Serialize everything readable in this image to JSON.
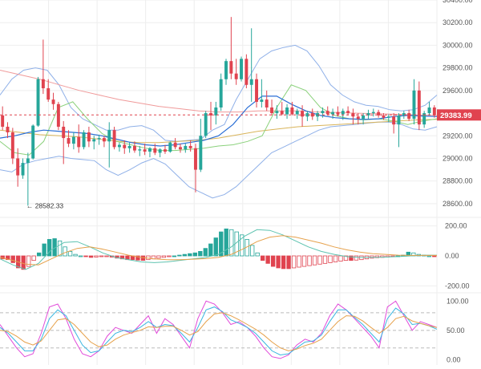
{
  "colors": {
    "up": "#26a69a",
    "down": "#e0434f",
    "bollinger": "#8fb0e8",
    "ema_long": "#f09a9a",
    "ema_short": "#8bd17c",
    "ma_mid": "#2b6fd6",
    "ma_slow": "#d9b45a",
    "macd_line": "#5ec3b0",
    "signal_line": "#e6a14b",
    "stoch_k": "#e14ad9",
    "stoch_d": "#39b6e0",
    "stoch_slow": "#e6a14b",
    "last_price_bg": "#e0434f"
  },
  "chart_data": [
    {
      "type": "candlestick",
      "panel": "price",
      "y_ticks": [
        "30400.00",
        "30200.00",
        "30000.00",
        "29800.00",
        "29600.00",
        "29383.99",
        "29200.00",
        "29000.00",
        "28800.00",
        "28600.00"
      ],
      "ylim": [
        28500,
        30400
      ],
      "last_price": 29383.99,
      "last_price_label": "29383.99",
      "annotation": {
        "label": "← 28582.33",
        "value": 28582.33,
        "candle_index": 5
      },
      "candles": [
        [
          29380,
          29460,
          29250,
          29280
        ],
        [
          29280,
          29320,
          29180,
          29230
        ],
        [
          29230,
          29270,
          28950,
          29000
        ],
        [
          29000,
          29090,
          28750,
          28850
        ],
        [
          28850,
          29000,
          28820,
          28960
        ],
        [
          28960,
          29050,
          28582,
          29000
        ],
        [
          29000,
          29300,
          28990,
          29290
        ],
        [
          29290,
          29720,
          29280,
          29700
        ],
        [
          29700,
          30050,
          29570,
          29620
        ],
        [
          29620,
          29700,
          29500,
          29520
        ],
        [
          29520,
          29580,
          29430,
          29480
        ],
        [
          29480,
          29500,
          29250,
          29280
        ],
        [
          29280,
          29330,
          28950,
          29180
        ],
        [
          29180,
          29250,
          29100,
          29130
        ],
        [
          29130,
          29230,
          29080,
          29190
        ],
        [
          29190,
          29300,
          29050,
          29100
        ],
        [
          29100,
          29250,
          29080,
          29230
        ],
        [
          29230,
          29280,
          29100,
          29150
        ],
        [
          29150,
          29200,
          29080,
          29170
        ],
        [
          29170,
          29210,
          29120,
          29180
        ],
        [
          29180,
          29200,
          29100,
          29150
        ],
        [
          29150,
          29320,
          28920,
          29250
        ],
        [
          29250,
          29280,
          29080,
          29100
        ],
        [
          29100,
          29140,
          29060,
          29120
        ],
        [
          29120,
          29160,
          29040,
          29090
        ],
        [
          29090,
          29140,
          29050,
          29110
        ],
        [
          29110,
          29150,
          29050,
          29070
        ],
        [
          29070,
          29110,
          29020,
          29080
        ],
        [
          29080,
          29130,
          29030,
          29060
        ],
        [
          29060,
          29100,
          29010,
          29090
        ],
        [
          29090,
          29130,
          29030,
          29050
        ],
        [
          29050,
          29090,
          29010,
          29080
        ],
        [
          29080,
          29120,
          29040,
          29060
        ],
        [
          29060,
          29150,
          29050,
          29140
        ],
        [
          29140,
          29180,
          29080,
          29100
        ],
        [
          29100,
          29130,
          29050,
          29080
        ],
        [
          29080,
          29130,
          29050,
          29110
        ],
        [
          29110,
          29160,
          29060,
          29090
        ],
        [
          29090,
          29130,
          28700,
          28900
        ],
        [
          28900,
          29350,
          28880,
          29200
        ],
        [
          29200,
          29420,
          29180,
          29400
        ],
        [
          29400,
          29500,
          29250,
          29380
        ],
        [
          29380,
          29500,
          29300,
          29450
        ],
        [
          29450,
          29750,
          29420,
          29700
        ],
        [
          29700,
          29880,
          29650,
          29860
        ],
        [
          29860,
          30250,
          29700,
          29750
        ],
        [
          29750,
          29880,
          29650,
          29700
        ],
        [
          29700,
          29900,
          29680,
          29880
        ],
        [
          29880,
          29920,
          29620,
          29650
        ],
        [
          29650,
          30150,
          29500,
          29700
        ],
        [
          29700,
          29750,
          29450,
          29500
        ],
        [
          29500,
          29700,
          29450,
          29520
        ],
        [
          29520,
          29600,
          29420,
          29450
        ],
        [
          29450,
          29520,
          29380,
          29400
        ],
        [
          29400,
          29470,
          29350,
          29420
        ],
        [
          29420,
          29500,
          29380,
          29390
        ],
        [
          29390,
          29480,
          29350,
          29450
        ],
        [
          29450,
          29500,
          29380,
          29390
        ],
        [
          29390,
          29440,
          29350,
          29420
        ],
        [
          29420,
          29470,
          29280,
          29370
        ],
        [
          29370,
          29420,
          29330,
          29400
        ],
        [
          29400,
          29440,
          29340,
          29370
        ],
        [
          29370,
          29420,
          29330,
          29400
        ],
        [
          29400,
          29450,
          29360,
          29420
        ],
        [
          29420,
          29460,
          29380,
          29390
        ],
        [
          29390,
          29440,
          29350,
          29410
        ],
        [
          29410,
          29460,
          29370,
          29390
        ],
        [
          29390,
          29440,
          29340,
          29420
        ],
        [
          29420,
          29460,
          29380,
          29400
        ],
        [
          29400,
          29440,
          29300,
          29370
        ],
        [
          29370,
          29400,
          29300,
          29350
        ],
        [
          29350,
          29400,
          29300,
          29380
        ],
        [
          29380,
          29430,
          29350,
          29400
        ],
        [
          29400,
          29440,
          29370,
          29410
        ],
        [
          29410,
          29430,
          29360,
          29380
        ],
        [
          29380,
          29400,
          29340,
          29360
        ],
        [
          29360,
          29390,
          29320,
          29370
        ],
        [
          29370,
          29400,
          29220,
          29300
        ],
        [
          29300,
          29400,
          29100,
          29380
        ],
        [
          29380,
          29420,
          29350,
          29400
        ],
        [
          29400,
          29430,
          29330,
          29350
        ],
        [
          29350,
          29700,
          29300,
          29600
        ],
        [
          29600,
          29680,
          29250,
          29300
        ],
        [
          29300,
          29420,
          29270,
          29400
        ],
        [
          29400,
          29500,
          29380,
          29450
        ],
        [
          29450,
          29470,
          29360,
          29384
        ]
      ],
      "bollinger_upper": [
        29560,
        29700,
        29780,
        29800,
        29780,
        29650,
        29450,
        29350,
        29300,
        29250,
        29250,
        29280,
        29290,
        29250,
        29160,
        29150,
        29160,
        29170,
        29250,
        29300,
        29520,
        29700,
        29880,
        29950,
        29980,
        30000,
        29950,
        29820,
        29650,
        29560,
        29500,
        29470,
        29460,
        29430,
        29420,
        29430,
        29470,
        29560
      ],
      "bollinger_lower": [
        28900,
        28880,
        28950,
        28980,
        29000,
        29020,
        29000,
        28990,
        28980,
        28900,
        28850,
        28900,
        28960,
        29000,
        28950,
        28850,
        28750,
        28700,
        28650,
        28680,
        28750,
        28850,
        28950,
        29050,
        29100,
        29150,
        29200,
        29250,
        29280,
        29290,
        29300,
        29310,
        29320,
        29320,
        29300,
        29260,
        29250,
        29280
      ],
      "ema_long": [
        29780,
        29740,
        29700,
        29650,
        29600,
        29560,
        29520,
        29490,
        29460,
        29440,
        29420,
        29410,
        29410,
        29420,
        29420,
        29420,
        29410,
        29405,
        29400,
        29395,
        29390,
        29385,
        29380
      ],
      "ema_short": [
        29150,
        29050,
        29030,
        29150,
        29450,
        29500,
        29350,
        29220,
        29150,
        29120,
        29090,
        29070,
        29070,
        29080,
        29090,
        29110,
        29120,
        29150,
        29200,
        29450,
        29650,
        29600,
        29450,
        29380,
        29350,
        29340,
        29350,
        29330,
        29300,
        29330,
        29350
      ],
      "ma_mid": [
        29180,
        29200,
        29230,
        29250,
        29240,
        29230,
        29220,
        29200,
        29170,
        29140,
        29120,
        29110,
        29120,
        29140,
        29160,
        29200,
        29300,
        29450,
        29550,
        29550,
        29480,
        29420,
        29380,
        29360,
        29350,
        29345,
        29350,
        29370,
        29380,
        29375,
        29370
      ],
      "ma_slow": [
        29250,
        29230,
        29210,
        29200,
        29190,
        29170,
        29150,
        29140,
        29140,
        29150,
        29160,
        29180,
        29210,
        29240,
        29260,
        29280,
        29290,
        29300,
        29310,
        29320,
        29330,
        29340,
        29345
      ]
    },
    {
      "type": "bar",
      "panel": "macd",
      "y_ticks": [
        "200.00",
        "0.00",
        "-200.00"
      ],
      "ylim": [
        -230,
        230
      ],
      "histogram": [
        -20,
        -25,
        -45,
        -80,
        -90,
        -70,
        -30,
        20,
        80,
        110,
        115,
        100,
        60,
        30,
        10,
        0,
        -5,
        -10,
        -8,
        -5,
        -3,
        -8,
        -15,
        -20,
        -25,
        -25,
        -28,
        -30,
        -25,
        -20,
        -15,
        -10,
        -5,
        0,
        5,
        10,
        15,
        20,
        30,
        50,
        80,
        120,
        160,
        180,
        175,
        160,
        140,
        110,
        70,
        20,
        -30,
        -50,
        -70,
        -80,
        -85,
        -85,
        -80,
        -75,
        -70,
        -65,
        -60,
        -55,
        -50,
        -45,
        -40,
        -35,
        -30,
        -30,
        -28,
        -25,
        -20,
        -15,
        -12,
        -10,
        -8,
        -5,
        0,
        5,
        25,
        20,
        10,
        5,
        0,
        -5
      ],
      "macd_line": [
        -20,
        -60,
        -90,
        -50,
        40,
        90,
        95,
        60,
        20,
        -10,
        -25,
        -40,
        -45,
        -40,
        -30,
        -20,
        -10,
        10,
        60,
        130,
        175,
        170,
        140,
        100,
        60,
        30,
        10,
        -5,
        -10,
        -10,
        -8,
        -5,
        0,
        5,
        5
      ],
      "signal_line": [
        -10,
        -30,
        -55,
        -60,
        -20,
        20,
        50,
        60,
        45,
        25,
        5,
        -10,
        -20,
        -25,
        -25,
        -22,
        -18,
        -10,
        10,
        50,
        95,
        125,
        135,
        125,
        105,
        85,
        60,
        40,
        25,
        15,
        10,
        5,
        3,
        3,
        3
      ]
    },
    {
      "type": "line",
      "panel": "stochastic",
      "y_ticks": [
        "100.00",
        "50.00",
        "0.00"
      ],
      "ylim": [
        -5,
        110
      ],
      "reference_levels": [
        80,
        50,
        20
      ],
      "series": [
        {
          "values": [
            60,
            40,
            20,
            5,
            10,
            45,
            90,
            95,
            70,
            35,
            10,
            5,
            15,
            40,
            55,
            50,
            45,
            60,
            75,
            45,
            70,
            60,
            40,
            20,
            70,
            100,
            95,
            80,
            60,
            65,
            55,
            40,
            20,
            5,
            2,
            8,
            25,
            35,
            30,
            45,
            75,
            95,
            85,
            70,
            55,
            40,
            20,
            90,
            100,
            75,
            50,
            65,
            60,
            55
          ]
        },
        {
          "values": [
            55,
            45,
            30,
            15,
            15,
            35,
            70,
            85,
            75,
            50,
            25,
            12,
            15,
            30,
            45,
            50,
            48,
            55,
            65,
            55,
            60,
            58,
            45,
            30,
            55,
            85,
            90,
            82,
            68,
            62,
            55,
            45,
            30,
            15,
            8,
            10,
            20,
            30,
            32,
            42,
            65,
            85,
            85,
            72,
            60,
            45,
            30,
            70,
            88,
            78,
            60,
            62,
            58,
            52
          ]
        },
        {
          "values": [
            50,
            48,
            40,
            30,
            25,
            32,
            50,
            68,
            70,
            60,
            45,
            30,
            22,
            25,
            35,
            42,
            46,
            50,
            56,
            55,
            57,
            57,
            50,
            42,
            48,
            65,
            78,
            80,
            75,
            68,
            60,
            52,
            42,
            30,
            20,
            15,
            18,
            24,
            28,
            35,
            50,
            65,
            75,
            74,
            66,
            55,
            45,
            55,
            70,
            74,
            66,
            62,
            58,
            55
          ]
        }
      ]
    }
  ]
}
